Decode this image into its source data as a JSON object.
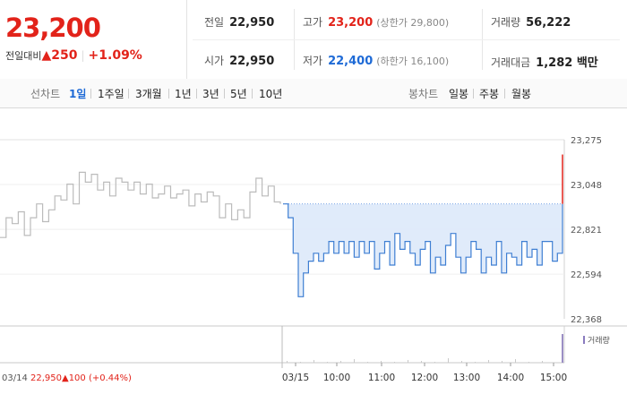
{
  "quote": {
    "price": "23,200",
    "change_label": "전일대비",
    "change_value": "▲250",
    "change_pct": "+1.09%"
  },
  "stats": {
    "prev_label": "전일",
    "prev_value": "22,950",
    "high_label": "고가",
    "high_value": "23,200",
    "upper_limit": "(상한가 29,800)",
    "volume_label": "거래량",
    "volume_value": "56,222",
    "open_label": "시가",
    "open_value": "22,950",
    "low_label": "저가",
    "low_value": "22,400",
    "lower_limit": "(하한가 16,100)",
    "amount_label": "거래대금",
    "amount_value": "1,282 백만"
  },
  "tabs": {
    "line_label": "선차트",
    "line_periods": [
      "1일",
      "1주일",
      "3개월",
      "1년",
      "3년",
      "5년",
      "10년"
    ],
    "active_period": "1일",
    "candle_label": "봉차트",
    "candle_periods": [
      "일봉",
      "주봉",
      "월봉"
    ]
  },
  "colors": {
    "up": "#e2231a",
    "down": "#1e6ad6",
    "line": "#3f7fd3",
    "fill": "#dde9fa",
    "prev_line": "#bbbbbb"
  },
  "chart_data": {
    "type": "line",
    "ylim": [
      22368,
      23275
    ],
    "y_ticks": [
      "23,275",
      "23,048",
      "22,821",
      "22,594",
      "22,368"
    ],
    "y_tick_values": [
      23275,
      23048,
      22821,
      22594,
      22368
    ],
    "x_ticks": [
      "03/15",
      "10:00",
      "11:00",
      "12:00",
      "13:00",
      "14:00",
      "15:00"
    ],
    "reference_price": 22950,
    "volume_legend": "거래량",
    "prev_day_info": {
      "date": "03/14",
      "price": "22,950",
      "change": "▲100 (+0.44%)"
    },
    "series": [
      {
        "values_prev_day": [
          22780,
          22880,
          22850,
          22910,
          22790,
          22880,
          22950,
          22860,
          22920,
          22990,
          22970,
          23050,
          22950,
          23110,
          23060,
          23100,
          23020,
          23060,
          22990,
          23080,
          23060,
          23020,
          23060,
          23000,
          23050,
          22980,
          23000,
          23040,
          22980,
          23000,
          23020,
          22940,
          23000,
          22960,
          23010,
          22990,
          22880,
          22950,
          22870,
          22920,
          22880,
          23010,
          23080,
          22990,
          23040,
          22960,
          22950
        ],
        "values": [
          22950,
          22880,
          22700,
          22480,
          22600,
          22660,
          22700,
          22660,
          22700,
          22760,
          22700,
          22760,
          22700,
          22760,
          22680,
          22760,
          22700,
          22760,
          22620,
          22700,
          22760,
          22640,
          22800,
          22720,
          22760,
          22700,
          22640,
          22720,
          22760,
          22600,
          22680,
          22640,
          22740,
          22800,
          22680,
          22600,
          22680,
          22760,
          22720,
          22600,
          22680,
          22640,
          22760,
          22600,
          22700,
          22680,
          22640,
          22760,
          22680,
          22720,
          22640,
          22760,
          22760,
          22660,
          22700,
          23200
        ]
      }
    ]
  }
}
